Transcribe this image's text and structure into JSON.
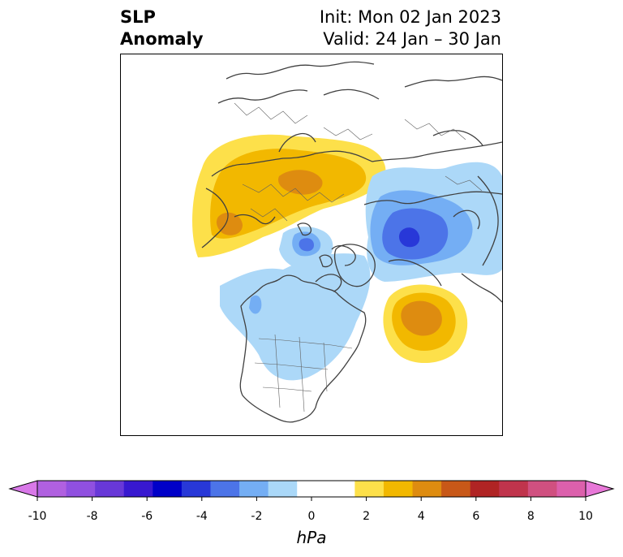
{
  "title": {
    "left_line1": "SLP",
    "left_line2": "Anomaly",
    "init": "Init: Mon 02 Jan 2023",
    "valid": "Valid: 24 Jan – 30 Jan"
  },
  "colorbar": {
    "label": "hPa",
    "ticks": [
      "-10",
      "-8",
      "-6",
      "-4",
      "-2",
      "0",
      "2",
      "4",
      "6",
      "8",
      "10"
    ],
    "under_color": "#d878e8",
    "over_color": "#e878d8",
    "colors": [
      "#b060e0",
      "#9050e0",
      "#6838d8",
      "#3818d0",
      "#0000c8",
      "#2838d8",
      "#4c74e8",
      "#74aef4",
      "#aad8f8",
      "#ffffff",
      "#ffffff",
      "#fde04a",
      "#f2b800",
      "#de8c10",
      "#c85818",
      "#b02424",
      "#c0344c",
      "#d05080",
      "#dc60ac"
    ]
  },
  "map": {
    "colors": {
      "light_blue": "#acd8f8",
      "mid_blue": "#74aef4",
      "blue": "#4c74e8",
      "dark_blue": "#2838d8",
      "yellow": "#fde04a",
      "gold": "#f2b800",
      "orange": "#de8c10",
      "coast": "#404040"
    }
  }
}
